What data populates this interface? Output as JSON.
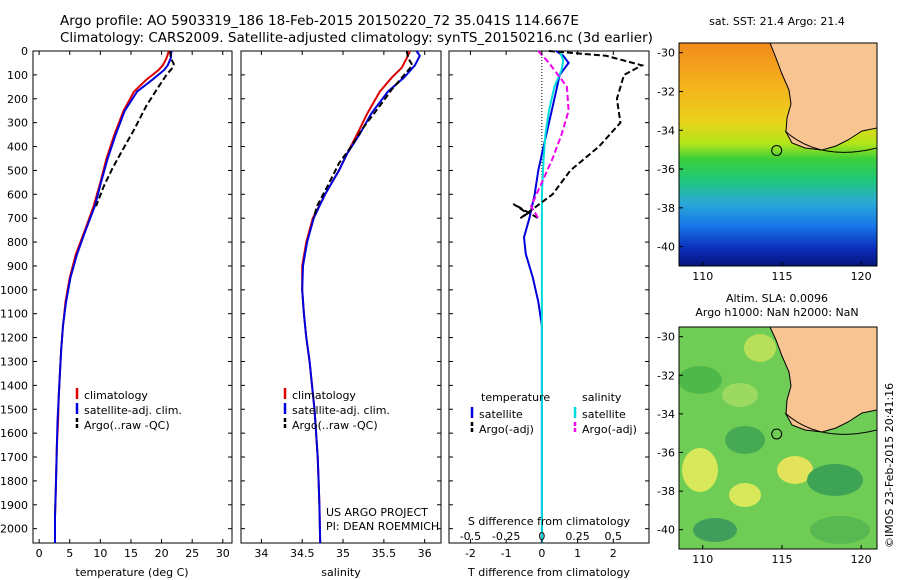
{
  "header": {
    "line1": "Argo profile: AO 5903319_186 18-Feb-2015 20150220_72 35.041S 114.667E",
    "line2": "Climatology: CARS2009. Satellite-adjusted climatology: synTS_20150216.nc (3d earlier)"
  },
  "depth_ticks": [
    0,
    100,
    200,
    300,
    400,
    500,
    600,
    700,
    800,
    900,
    1000,
    1100,
    1200,
    1300,
    1400,
    1500,
    1600,
    1700,
    1800,
    1900,
    2000
  ],
  "chart_data": [
    {
      "type": "line",
      "name": "temperature",
      "xlabel": "temperature (deg C)",
      "xlim": [
        -1,
        31.5
      ],
      "ylim": [
        0,
        2060
      ],
      "xticks": [
        0,
        5,
        10,
        15,
        20,
        25,
        30
      ],
      "legend": [
        "climatology",
        "satellite-adj. clim.",
        "Argo(..raw -QC)"
      ],
      "series": [
        {
          "key": "clim",
          "color": "#dd0000",
          "style": "solid",
          "points": [
            [
              21.2,
              0
            ],
            [
              20.8,
              30
            ],
            [
              20.2,
              60
            ],
            [
              19.5,
              80
            ],
            [
              17.5,
              120
            ],
            [
              15.5,
              170
            ],
            [
              13.8,
              250
            ],
            [
              12.3,
              350
            ],
            [
              11.0,
              450
            ],
            [
              10.0,
              550
            ],
            [
              8.9,
              650
            ],
            [
              7.5,
              750
            ],
            [
              6.0,
              850
            ],
            [
              5.0,
              950
            ],
            [
              4.3,
              1050
            ],
            [
              3.9,
              1150
            ],
            [
              3.6,
              1250
            ],
            [
              3.4,
              1350
            ],
            [
              3.2,
              1450
            ],
            [
              3.1,
              1550
            ],
            [
              2.9,
              1650
            ],
            [
              2.8,
              1750
            ],
            [
              2.7,
              1850
            ],
            [
              2.6,
              1950
            ],
            [
              2.6,
              2060
            ]
          ]
        },
        {
          "key": "sat",
          "color": "#0000dd",
          "style": "solid",
          "points": [
            [
              21.6,
              0
            ],
            [
              21.5,
              30
            ],
            [
              21.0,
              60
            ],
            [
              20.4,
              80
            ],
            [
              18.5,
              120
            ],
            [
              16.0,
              170
            ],
            [
              14.0,
              250
            ],
            [
              12.5,
              350
            ],
            [
              11.2,
              450
            ],
            [
              10.1,
              550
            ],
            [
              9.1,
              650
            ],
            [
              7.6,
              750
            ],
            [
              6.2,
              850
            ],
            [
              5.1,
              950
            ],
            [
              4.4,
              1050
            ],
            [
              3.9,
              1150
            ],
            [
              3.6,
              1250
            ],
            [
              3.4,
              1350
            ],
            [
              3.2,
              1450
            ],
            [
              3.0,
              1550
            ],
            [
              2.9,
              1650
            ],
            [
              2.8,
              1750
            ],
            [
              2.7,
              1850
            ],
            [
              2.6,
              1950
            ],
            [
              2.6,
              2060
            ]
          ]
        },
        {
          "key": "argo",
          "color": "#000000",
          "style": "dash",
          "points": [
            [
              21.4,
              0
            ],
            [
              21.5,
              30
            ],
            [
              22.0,
              55
            ],
            [
              21.8,
              70
            ],
            [
              20.8,
              100
            ],
            [
              19.5,
              150
            ],
            [
              17.5,
              230
            ],
            [
              15.5,
              330
            ],
            [
              13.5,
              420
            ],
            [
              12.0,
              490
            ],
            [
              10.5,
              570
            ],
            [
              9.3,
              650
            ]
          ]
        }
      ]
    },
    {
      "type": "line",
      "name": "salinity",
      "xlabel": "salinity",
      "xlim": [
        33.75,
        36.2
      ],
      "ylim": [
        0,
        2060
      ],
      "xticks": [
        34,
        34.5,
        35,
        35.5,
        36
      ],
      "legend": [
        "climatology",
        "satellite-adj. clim.",
        "Argo(..raw -QC)"
      ],
      "series": [
        {
          "key": "clim",
          "color": "#dd0000",
          "style": "solid",
          "points": [
            [
              35.82,
              0
            ],
            [
              35.78,
              30
            ],
            [
              35.72,
              70
            ],
            [
              35.6,
              110
            ],
            [
              35.45,
              170
            ],
            [
              35.3,
              260
            ],
            [
              35.17,
              350
            ],
            [
              35.05,
              430
            ],
            [
              34.95,
              500
            ],
            [
              34.78,
              600
            ],
            [
              34.63,
              700
            ],
            [
              34.55,
              800
            ],
            [
              34.5,
              900
            ],
            [
              34.5,
              1000
            ],
            [
              34.52,
              1100
            ],
            [
              34.55,
              1200
            ],
            [
              34.59,
              1300
            ],
            [
              34.62,
              1400
            ],
            [
              34.65,
              1500
            ],
            [
              34.67,
              1600
            ],
            [
              34.69,
              1700
            ],
            [
              34.7,
              1800
            ],
            [
              34.71,
              1900
            ],
            [
              34.72,
              2060
            ]
          ]
        },
        {
          "key": "sat",
          "color": "#0000dd",
          "style": "solid",
          "points": [
            [
              35.9,
              0
            ],
            [
              35.94,
              20
            ],
            [
              35.88,
              60
            ],
            [
              35.75,
              110
            ],
            [
              35.55,
              170
            ],
            [
              35.35,
              260
            ],
            [
              35.2,
              350
            ],
            [
              35.05,
              430
            ],
            [
              34.95,
              500
            ],
            [
              34.78,
              600
            ],
            [
              34.64,
              700
            ],
            [
              34.56,
              800
            ],
            [
              34.51,
              900
            ],
            [
              34.5,
              1000
            ],
            [
              34.52,
              1100
            ],
            [
              34.55,
              1200
            ],
            [
              34.59,
              1300
            ],
            [
              34.62,
              1400
            ],
            [
              34.65,
              1500
            ],
            [
              34.67,
              1600
            ],
            [
              34.69,
              1700
            ],
            [
              34.7,
              1800
            ],
            [
              34.71,
              1900
            ],
            [
              34.72,
              2060
            ]
          ]
        },
        {
          "key": "argo",
          "color": "#000000",
          "style": "dash",
          "points": [
            [
              35.78,
              0
            ],
            [
              35.8,
              30
            ],
            [
              35.85,
              60
            ],
            [
              35.75,
              100
            ],
            [
              35.6,
              160
            ],
            [
              35.45,
              230
            ],
            [
              35.25,
              320
            ],
            [
              35.1,
              400
            ],
            [
              34.95,
              470
            ],
            [
              34.82,
              560
            ],
            [
              34.68,
              650
            ],
            [
              34.64,
              700
            ]
          ]
        }
      ],
      "credit_line1": "US ARGO PROJECT",
      "credit_line2": "PI: DEAN ROEMMICH"
    },
    {
      "type": "line",
      "name": "differences",
      "xlabel_bottom": "T difference from climatology",
      "xlabel_top": "S difference from climatology",
      "xlim": [
        -2.6,
        3.0
      ],
      "ylim": [
        0,
        2060
      ],
      "xticks_T": [
        -2,
        -1,
        0,
        1,
        2
      ],
      "xticks_S": [
        -0.5,
        -0.25,
        0,
        0.25,
        0.5
      ],
      "legend_header_T": "temperature",
      "legend_header_S": "salinity",
      "legend_T": [
        "satellite",
        "Argo(-adj)"
      ],
      "legend_S": [
        "satellite",
        "Argo(-adj)"
      ],
      "series": [
        {
          "key": "T_sat",
          "color": "#0000dd",
          "style": "solid",
          "points": [
            [
              0.4,
              0
            ],
            [
              0.6,
              20
            ],
            [
              0.75,
              50
            ],
            [
              0.5,
              100
            ],
            [
              0.35,
              200
            ],
            [
              0.2,
              300
            ],
            [
              0.05,
              400
            ],
            [
              -0.1,
              500
            ],
            [
              -0.2,
              600
            ],
            [
              -0.35,
              700
            ],
            [
              -0.5,
              780
            ],
            [
              -0.45,
              850
            ],
            [
              -0.25,
              950
            ],
            [
              -0.1,
              1050
            ],
            [
              0.0,
              1150
            ],
            [
              0.0,
              2060
            ]
          ]
        },
        {
          "key": "S_sat",
          "color": "#00dddd",
          "style": "solid",
          "points": [
            [
              0.5,
              0
            ],
            [
              0.6,
              40
            ],
            [
              0.55,
              80
            ],
            [
              0.35,
              150
            ],
            [
              0.2,
              250
            ],
            [
              0.1,
              350
            ],
            [
              0.05,
              450
            ],
            [
              0.0,
              600
            ],
            [
              0.0,
              2060
            ]
          ]
        },
        {
          "key": "T_argo",
          "color": "#000000",
          "style": "dash",
          "points": [
            [
              0.2,
              0
            ],
            [
              1.8,
              20
            ],
            [
              2.8,
              60
            ],
            [
              2.3,
              100
            ],
            [
              2.1,
              200
            ],
            [
              2.2,
              300
            ],
            [
              1.6,
              400
            ],
            [
              0.8,
              500
            ],
            [
              0.3,
              600
            ],
            [
              -0.6,
              700
            ],
            [
              -0.4,
              680
            ],
            [
              -0.8,
              640
            ],
            [
              -0.1,
              700
            ]
          ]
        },
        {
          "key": "S_argo",
          "color": "#ee00ee",
          "style": "dash",
          "points": [
            [
              -0.1,
              0
            ],
            [
              0.2,
              50
            ],
            [
              0.7,
              150
            ],
            [
              0.75,
              250
            ],
            [
              0.55,
              350
            ],
            [
              0.3,
              450
            ],
            [
              0.0,
              550
            ],
            [
              -0.3,
              650
            ],
            [
              -0.1,
              700
            ]
          ]
        }
      ]
    }
  ],
  "maps": {
    "sst_title": "sat. SST: 21.4  Argo: 21.4",
    "sla_title1": "Altim. SLA: 0.0096",
    "sla_title2": "Argo h1000: NaN h2000: NaN",
    "lat_ticks": [
      -30,
      -32,
      -34,
      -36,
      -38,
      -40
    ],
    "lon_ticks": [
      110,
      115,
      120
    ],
    "profile_lon": 114.667,
    "profile_lat": -35.041,
    "colors": {
      "land": "#f8c491",
      "coast": "#000000"
    }
  },
  "stamp": "©IMOS 23-Feb-2015 20:41:16"
}
